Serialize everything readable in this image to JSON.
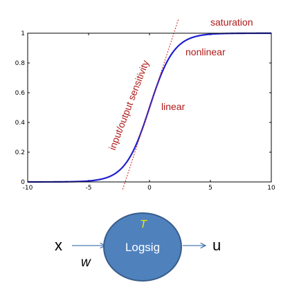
{
  "chart_data": {
    "type": "line",
    "title": "",
    "xlabel": "",
    "ylabel": "",
    "xlim": [
      -10,
      10
    ],
    "ylim": [
      0,
      1
    ],
    "grid": false,
    "legend": "none",
    "x_ticks": [
      -10,
      -5,
      0,
      5,
      10
    ],
    "x_tick_labels": [
      "-10",
      "-5",
      "0",
      "5",
      "10"
    ],
    "y_ticks": [
      0,
      0.2,
      0.4,
      0.6,
      0.8,
      1
    ],
    "y_tick_labels": [
      "0",
      "0.2",
      "0.4",
      "0.6",
      "0.8",
      "1"
    ],
    "series": [
      {
        "style": "solid",
        "color": "#1f1fd0",
        "x": [
          -10,
          -9,
          -8,
          -7,
          -6,
          -5,
          -4.5,
          -4,
          -3.5,
          -3,
          -2.5,
          -2,
          -1.5,
          -1,
          -0.5,
          0,
          0.5,
          1,
          1.5,
          2,
          2.5,
          3,
          3.5,
          4,
          4.5,
          5,
          6,
          7,
          8,
          9,
          10
        ],
        "y": [
          5e-05,
          0.00012,
          0.00034,
          0.00091,
          0.00247,
          0.00669,
          0.01099,
          0.01799,
          0.02931,
          0.04743,
          0.07586,
          0.1192,
          0.18243,
          0.26894,
          0.37754,
          0.5,
          0.62246,
          0.73106,
          0.81757,
          0.8808,
          0.92414,
          0.95257,
          0.97069,
          0.98201,
          0.98901,
          0.99331,
          0.99753,
          0.99909,
          0.99966,
          0.99988,
          0.99995
        ]
      },
      {
        "style": "dotted",
        "color": "#cc2222",
        "x": [
          -2.2,
          2.4
        ],
        "y": [
          -0.05,
          1.1
        ]
      }
    ],
    "annotations": [
      {
        "text": "saturation",
        "color": "#b01818"
      },
      {
        "text": "nonlinear",
        "color": "#b01818"
      },
      {
        "text": "linear",
        "color": "#b01818"
      },
      {
        "text": "input/output sensitivity",
        "color": "#b01818"
      }
    ]
  },
  "diagram": {
    "input_label": "x",
    "weight_label": "w",
    "node_top_label": "T",
    "node_label": "Logsig",
    "output_label": "u",
    "node_fill": "#4f81bd",
    "node_stroke": "#385d8a",
    "arrow_color": "#4a7ab5",
    "top_label_color": "#f2e600"
  }
}
